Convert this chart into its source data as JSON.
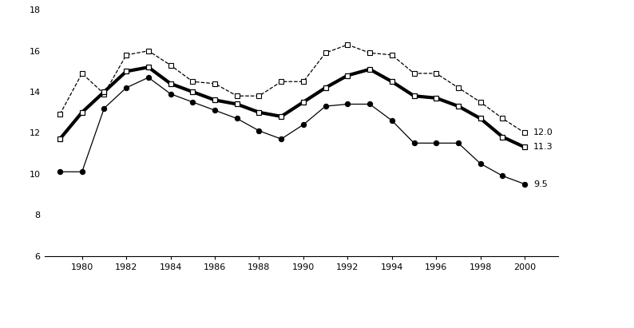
{
  "years": [
    1979,
    1980,
    1981,
    1982,
    1983,
    1984,
    1985,
    1986,
    1987,
    1988,
    1989,
    1990,
    1991,
    1992,
    1993,
    1994,
    1995,
    1996,
    1997,
    1998,
    1999,
    2000
  ],
  "before_means_tested": [
    12.9,
    14.9,
    13.9,
    15.8,
    16.0,
    15.3,
    14.5,
    14.4,
    13.8,
    13.8,
    14.5,
    14.5,
    15.9,
    16.3,
    15.9,
    15.8,
    14.9,
    14.9,
    14.2,
    13.5,
    12.7,
    12.0
  ],
  "official_poverty": [
    11.7,
    13.0,
    14.0,
    15.0,
    15.2,
    14.4,
    14.0,
    13.6,
    13.4,
    13.0,
    12.8,
    13.5,
    14.2,
    14.8,
    15.1,
    14.5,
    13.8,
    13.7,
    13.3,
    12.7,
    11.8,
    11.3
  ],
  "after_noncash": [
    10.1,
    10.1,
    13.2,
    14.2,
    14.7,
    13.9,
    13.5,
    13.1,
    12.7,
    12.1,
    11.7,
    12.4,
    13.3,
    13.4,
    13.4,
    12.6,
    11.5,
    11.5,
    11.5,
    10.5,
    9.9,
    9.5
  ],
  "xlim": [
    1978.3,
    2001.5
  ],
  "ylim": [
    6,
    18
  ],
  "yticks": [
    6,
    8,
    10,
    12,
    14,
    16,
    18
  ],
  "xticks": [
    1980,
    1982,
    1984,
    1986,
    1988,
    1990,
    1992,
    1994,
    1996,
    1998,
    2000
  ],
  "ylabel_end_values": {
    "before": "12.0",
    "official": "11.3",
    "after": "9.5"
  },
  "bg_color": "#ffffff",
  "figsize": [
    7.94,
    4.11
  ],
  "dpi": 100
}
